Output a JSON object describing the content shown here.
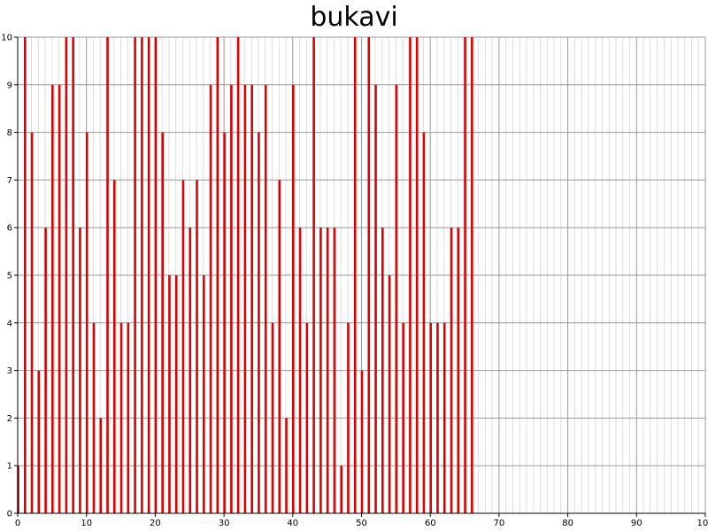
{
  "chart_data": {
    "type": "bar",
    "title": "bukavi",
    "xlabel": "",
    "ylabel": "",
    "x": [
      0,
      1,
      2,
      3,
      4,
      5,
      6,
      7,
      8,
      9,
      10,
      11,
      12,
      13,
      14,
      15,
      16,
      17,
      18,
      19,
      20,
      21,
      22,
      23,
      24,
      25,
      26,
      27,
      28,
      29,
      30,
      31,
      32,
      33,
      34,
      35,
      36,
      37,
      38,
      39,
      40,
      41,
      42,
      43,
      44,
      45,
      46,
      47,
      48,
      49,
      50,
      51,
      52,
      53,
      54,
      55,
      56,
      57,
      58,
      59,
      60,
      61,
      62,
      63,
      64,
      65,
      66
    ],
    "values": [
      1,
      10,
      8,
      3,
      6,
      9,
      9,
      10,
      10,
      6,
      8,
      4,
      2,
      10,
      7,
      4,
      4,
      10,
      10,
      10,
      10,
      8,
      5,
      5,
      7,
      6,
      7,
      5,
      9,
      10,
      8,
      9,
      10,
      9,
      9,
      8,
      9,
      4,
      7,
      2,
      9,
      6,
      4,
      10,
      6,
      6,
      6,
      1,
      4,
      10,
      3,
      10,
      9,
      6,
      5,
      9,
      4,
      10,
      10,
      8,
      4,
      4,
      4,
      6,
      6,
      10,
      10
    ],
    "xlim": [
      0,
      100
    ],
    "ylim": [
      0,
      10
    ],
    "x_ticks": [
      0,
      10,
      20,
      30,
      40,
      50,
      60,
      70,
      80,
      90,
      100
    ],
    "y_ticks": [
      0,
      1,
      2,
      3,
      4,
      5,
      6,
      7,
      8,
      9,
      10
    ],
    "grid": true,
    "bar_color": "#dd0000",
    "grid_major_color": "#999999",
    "grid_minor_color": "#dddddd"
  }
}
